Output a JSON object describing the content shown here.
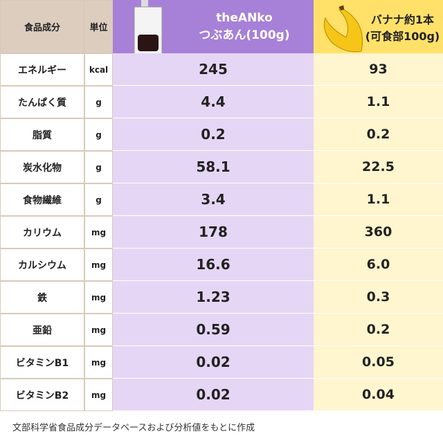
{
  "table": {
    "header": {
      "name": "食品成分",
      "unit": "単位",
      "anko": [
        "theANko",
        "つぶあん(100g)"
      ],
      "banana": [
        "バナナ約1本",
        "(可食部100g)"
      ]
    },
    "rows": [
      [
        "エネルギー",
        "kcal",
        "245",
        "93"
      ],
      [
        "たんぱく質",
        "g",
        "4.4",
        "1.1"
      ],
      [
        "脂質",
        "g",
        "0.2",
        "0.2"
      ],
      [
        "炭水化物",
        "g",
        "58.1",
        "22.5"
      ],
      [
        "食物繊維",
        "g",
        "3.4",
        "1.1"
      ],
      [
        "カリウム",
        "mg",
        "178",
        "360"
      ],
      [
        "カルシウム",
        "mg",
        "16.6",
        "6.0"
      ],
      [
        "鉄",
        "mg",
        "1.23",
        "0.3"
      ],
      [
        "亜鉛",
        "mg",
        "0.59",
        "0.2"
      ],
      [
        "ビタミンB1",
        "mg",
        "0.02",
        "0.05"
      ],
      [
        "ビタミンB2",
        "mg",
        "0.02",
        "0.04"
      ]
    ]
  },
  "footer": "文部科学省食品成分データベースおよび分析値をもとに作成"
}
